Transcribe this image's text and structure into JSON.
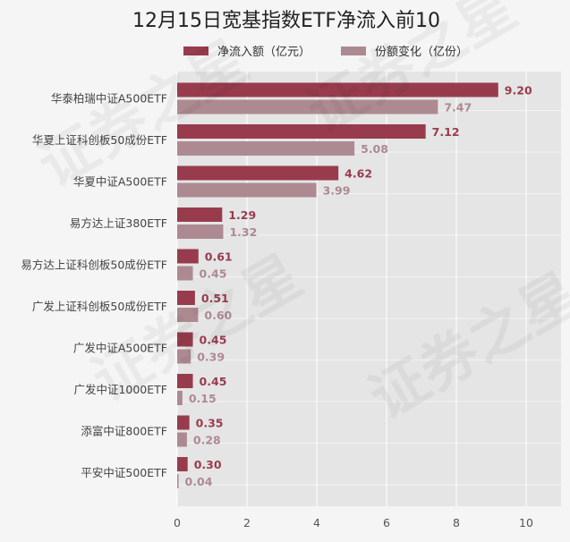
{
  "chart_data": {
    "type": "bar",
    "orientation": "horizontal",
    "title": "12月15日宽基指数ETF净流入前10",
    "xlabel": "",
    "ylabel": "",
    "categories": [
      "华泰柏瑞中证A500ETF",
      "华夏上证科创板50成份ETF",
      "华夏中证A500ETF",
      "易方达上证380ETF",
      "易方达上证科创板50成份ETF",
      "广发上证科创板50成份ETF",
      "广发中证A500ETF",
      "广发中证1000ETF",
      "添富中证800ETF",
      "平安中证500ETF"
    ],
    "series": [
      {
        "name": "净流入额（亿元）",
        "color": "#983c4d",
        "values": [
          9.2,
          7.12,
          4.62,
          1.29,
          0.61,
          0.51,
          0.45,
          0.45,
          0.35,
          0.3
        ],
        "labels": [
          "9.20",
          "7.12",
          "4.62",
          "1.29",
          "0.61",
          "0.51",
          "0.45",
          "0.45",
          "0.35",
          "0.30"
        ]
      },
      {
        "name": "份额变化（亿份）",
        "color": "#ad8a92",
        "values": [
          7.47,
          5.08,
          3.99,
          1.32,
          0.45,
          0.6,
          0.39,
          0.15,
          0.28,
          0.04
        ],
        "labels": [
          "7.47",
          "5.08",
          "3.99",
          "1.32",
          "0.45",
          "0.60",
          "0.39",
          "0.15",
          "0.28",
          "0.04"
        ]
      }
    ],
    "xlim": [
      0,
      11
    ],
    "xticks": [
      0,
      2,
      4,
      6,
      8,
      10
    ],
    "grid": true,
    "legend_position": "top",
    "plot_background": "#e5e5e5",
    "watermark_text": "证券之星"
  }
}
